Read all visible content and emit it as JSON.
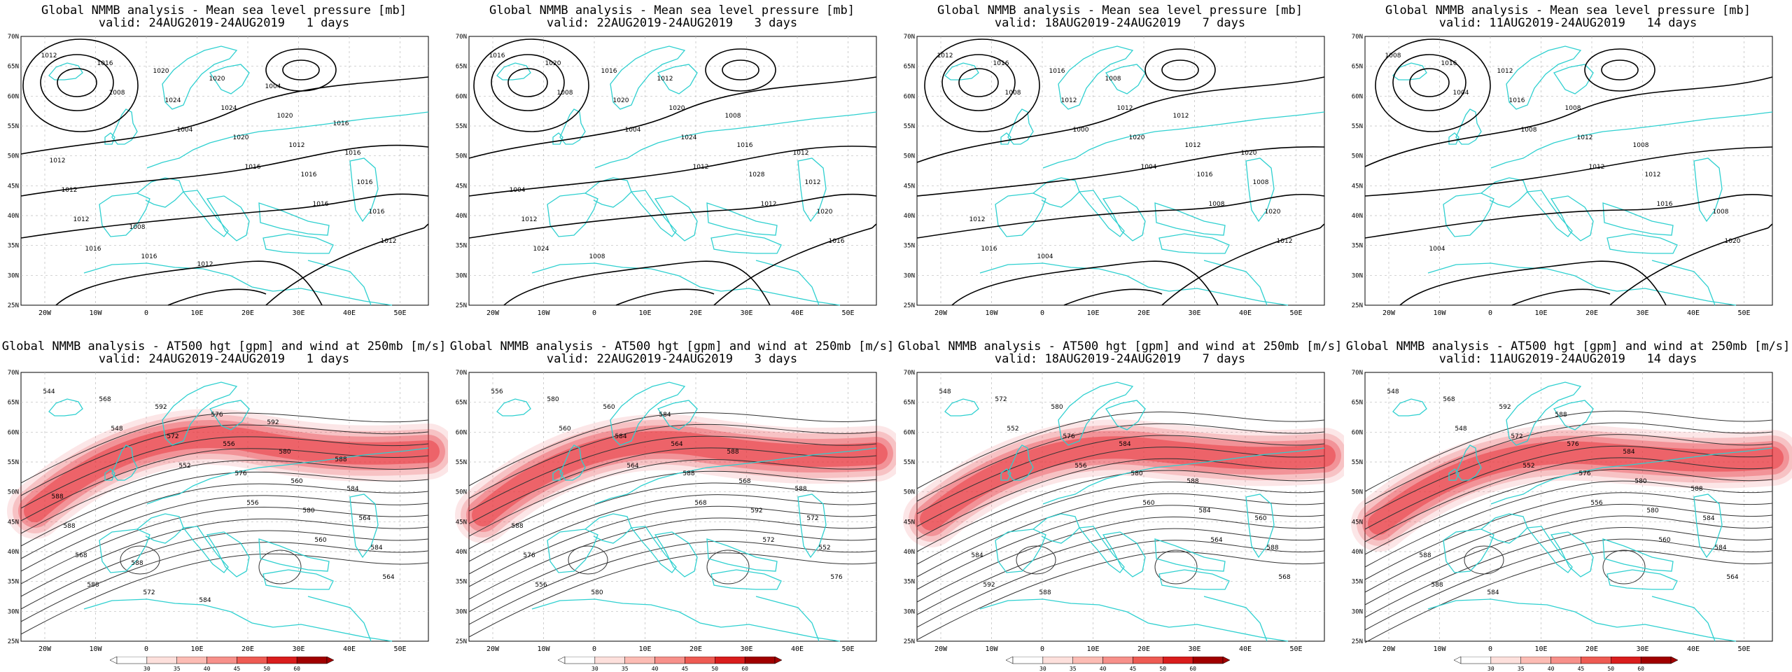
{
  "panels": [
    {
      "title": "Global NMMB analysis - Mean sea level pressure [mb]",
      "valid": "valid: 24AUG2019-24AUG2019   1 days",
      "type": "mslp",
      "labels": [
        "1012",
        "1008",
        "1004",
        "1016",
        "1016",
        "1012",
        "1016",
        "1024",
        "1020",
        "1016",
        "1016",
        "1016",
        "1020",
        "1024",
        "1012",
        "1016",
        "1012",
        "1016",
        "1020",
        "1020",
        "1016",
        "1012",
        "1008",
        "1012",
        "1004",
        "1016",
        "1012"
      ]
    },
    {
      "title": "Global NMMB analysis - Mean sea level pressure [mb]",
      "valid": "valid: 22AUG2019-24AUG2019   3 days",
      "type": "mslp",
      "labels": [
        "1016",
        "1008",
        "1004",
        "1012",
        "1012",
        "1016",
        "1020",
        "1020",
        "1024",
        "1028",
        "1020",
        "1024",
        "1016",
        "1020",
        "1016",
        "1012",
        "1012",
        "1008",
        "1012",
        "1008",
        "1012",
        "1004"
      ]
    },
    {
      "title": "Global NMMB analysis - Mean sea level pressure [mb]",
      "valid": "valid: 18AUG2019-24AUG2019   7 days",
      "type": "mslp",
      "labels": [
        "1012",
        "1008",
        "1000",
        "1004",
        "1008",
        "1012",
        "1016",
        "1012",
        "1020",
        "1016",
        "1020",
        "1016",
        "1016",
        "1012",
        "1012",
        "1008",
        "1012",
        "1004",
        "1008",
        "1012",
        "1020"
      ]
    },
    {
      "title": "Global NMMB analysis - Mean sea level pressure [mb]",
      "valid": "valid: 11AUG2019-24AUG2019   14 days",
      "type": "mslp",
      "labels": [
        "1008",
        "1004",
        "1008",
        "1012",
        "1016",
        "1020",
        "1016",
        "1016",
        "1012",
        "1012",
        "1008",
        "1004",
        "1012",
        "1008",
        "1008"
      ]
    },
    {
      "title": "Global NMMB analysis - AT500 hgt [gpm] and wind at 250mb [m/s]",
      "valid": "valid: 24AUG2019-24AUG2019   1 days",
      "type": "z500",
      "labels": [
        "544",
        "548",
        "552",
        "556",
        "560",
        "564",
        "568",
        "572",
        "576",
        "580",
        "584",
        "588",
        "592",
        "556",
        "560",
        "564",
        "568",
        "572",
        "576",
        "580",
        "584",
        "588",
        "588",
        "584",
        "592",
        "588",
        "588"
      ]
    },
    {
      "title": "Global NMMB analysis - AT500 hgt [gpm] and wind at 250mb [m/s]",
      "valid": "valid: 22AUG2019-24AUG2019   3 days",
      "type": "z500",
      "labels": [
        "556",
        "560",
        "564",
        "568",
        "572",
        "576",
        "580",
        "584",
        "588",
        "592",
        "552",
        "556",
        "560",
        "564",
        "568",
        "572",
        "576",
        "580",
        "584",
        "588",
        "588",
        "588"
      ]
    },
    {
      "title": "Global NMMB analysis - AT500 hgt [gpm] and wind at 250mb [m/s]",
      "valid": "valid: 18AUG2019-24AUG2019   7 days",
      "type": "z500",
      "labels": [
        "548",
        "552",
        "556",
        "560",
        "564",
        "568",
        "572",
        "576",
        "580",
        "584",
        "588",
        "592",
        "580",
        "584",
        "588",
        "560",
        "584",
        "588"
      ]
    },
    {
      "title": "Global NMMB analysis - AT500 hgt [gpm] and wind at 250mb [m/s]",
      "valid": "valid: 11AUG2019-24AUG2019   14 days",
      "type": "z500",
      "labels": [
        "548",
        "548",
        "552",
        "556",
        "560",
        "564",
        "568",
        "572",
        "576",
        "580",
        "584",
        "588",
        "592",
        "576",
        "580",
        "584",
        "588",
        "584",
        "588",
        "584",
        "588"
      ]
    }
  ],
  "lat_labels": [
    "70N",
    "65N",
    "60N",
    "55N",
    "50N",
    "45N",
    "40N",
    "35N",
    "30N",
    "25N"
  ],
  "lon_labels": [
    "20W",
    "10W",
    "0",
    "10E",
    "20E",
    "30E",
    "40E",
    "50E"
  ],
  "colorbar": {
    "ticks": [
      "30",
      "35",
      "40",
      "45",
      "50",
      "60"
    ],
    "colors": [
      "#ffffff",
      "#fde0dc",
      "#fcbcb4",
      "#f7908a",
      "#ee5b53",
      "#d91d1d",
      "#a00000"
    ]
  },
  "colors": {
    "coast": "#2fd0d0",
    "contour": "#000000",
    "grid": "#bbbbbb",
    "jet": "#e8333a"
  }
}
